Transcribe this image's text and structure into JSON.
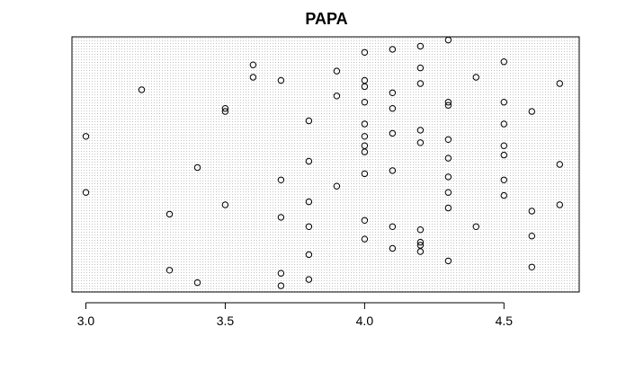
{
  "chart_data": {
    "type": "scatter",
    "title": "PAPA",
    "xlabel": "",
    "ylabel": "",
    "xlim": [
      2.95,
      4.77
    ],
    "x_ticks": [
      "3.0",
      "3.5",
      "4.0",
      "4.5"
    ],
    "x_tick_values": [
      3.0,
      3.5,
      4.0,
      4.5
    ],
    "y_axis_shown": false,
    "grid": true,
    "point_style": "open-circle",
    "colors": {
      "background": "#ffffff",
      "grid": "#bdbdbd",
      "frame": "#000000",
      "point": "#000000"
    },
    "points": [
      {
        "x": 3.0,
        "y": 80
      },
      {
        "x": 3.0,
        "y": 62
      },
      {
        "x": 3.2,
        "y": 95
      },
      {
        "x": 3.3,
        "y": 55
      },
      {
        "x": 3.3,
        "y": 37
      },
      {
        "x": 3.4,
        "y": 70
      },
      {
        "x": 3.4,
        "y": 33
      },
      {
        "x": 3.5,
        "y": 89
      },
      {
        "x": 3.5,
        "y": 88
      },
      {
        "x": 3.5,
        "y": 58
      },
      {
        "x": 3.6,
        "y": 103
      },
      {
        "x": 3.6,
        "y": 99
      },
      {
        "x": 3.7,
        "y": 98
      },
      {
        "x": 3.7,
        "y": 66
      },
      {
        "x": 3.7,
        "y": 54
      },
      {
        "x": 3.7,
        "y": 36
      },
      {
        "x": 3.7,
        "y": 32
      },
      {
        "x": 3.8,
        "y": 85
      },
      {
        "x": 3.8,
        "y": 72
      },
      {
        "x": 3.8,
        "y": 59
      },
      {
        "x": 3.8,
        "y": 51
      },
      {
        "x": 3.8,
        "y": 42
      },
      {
        "x": 3.8,
        "y": 34
      },
      {
        "x": 3.9,
        "y": 101
      },
      {
        "x": 3.9,
        "y": 93
      },
      {
        "x": 3.9,
        "y": 64
      },
      {
        "x": 4.0,
        "y": 107
      },
      {
        "x": 4.0,
        "y": 98
      },
      {
        "x": 4.0,
        "y": 96
      },
      {
        "x": 4.0,
        "y": 91
      },
      {
        "x": 4.0,
        "y": 84
      },
      {
        "x": 4.0,
        "y": 80
      },
      {
        "x": 4.0,
        "y": 77
      },
      {
        "x": 4.0,
        "y": 75
      },
      {
        "x": 4.0,
        "y": 68
      },
      {
        "x": 4.0,
        "y": 53
      },
      {
        "x": 4.0,
        "y": 47
      },
      {
        "x": 4.1,
        "y": 108
      },
      {
        "x": 4.1,
        "y": 94
      },
      {
        "x": 4.1,
        "y": 89
      },
      {
        "x": 4.1,
        "y": 81
      },
      {
        "x": 4.1,
        "y": 69
      },
      {
        "x": 4.1,
        "y": 51
      },
      {
        "x": 4.1,
        "y": 44
      },
      {
        "x": 4.2,
        "y": 109
      },
      {
        "x": 4.2,
        "y": 102
      },
      {
        "x": 4.2,
        "y": 97
      },
      {
        "x": 4.2,
        "y": 82
      },
      {
        "x": 4.2,
        "y": 78
      },
      {
        "x": 4.2,
        "y": 50
      },
      {
        "x": 4.2,
        "y": 46
      },
      {
        "x": 4.2,
        "y": 45
      },
      {
        "x": 4.2,
        "y": 43
      },
      {
        "x": 4.3,
        "y": 111
      },
      {
        "x": 4.3,
        "y": 91
      },
      {
        "x": 4.3,
        "y": 90
      },
      {
        "x": 4.3,
        "y": 79
      },
      {
        "x": 4.3,
        "y": 73
      },
      {
        "x": 4.3,
        "y": 67
      },
      {
        "x": 4.3,
        "y": 62
      },
      {
        "x": 4.3,
        "y": 57
      },
      {
        "x": 4.3,
        "y": 40
      },
      {
        "x": 4.4,
        "y": 99
      },
      {
        "x": 4.4,
        "y": 51
      },
      {
        "x": 4.5,
        "y": 104
      },
      {
        "x": 4.5,
        "y": 91
      },
      {
        "x": 4.5,
        "y": 84
      },
      {
        "x": 4.5,
        "y": 77
      },
      {
        "x": 4.5,
        "y": 74
      },
      {
        "x": 4.5,
        "y": 66
      },
      {
        "x": 4.5,
        "y": 61
      },
      {
        "x": 4.6,
        "y": 88
      },
      {
        "x": 4.6,
        "y": 56
      },
      {
        "x": 4.6,
        "y": 48
      },
      {
        "x": 4.6,
        "y": 38
      },
      {
        "x": 4.7,
        "y": 97
      },
      {
        "x": 4.7,
        "y": 71
      },
      {
        "x": 4.7,
        "y": 58
      }
    ],
    "ylim": [
      30,
      112
    ]
  }
}
